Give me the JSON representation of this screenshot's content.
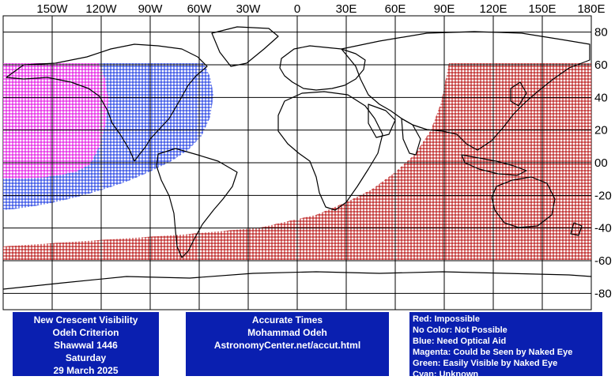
{
  "map": {
    "lon_labels": [
      "150W",
      "120W",
      "90W",
      "60W",
      "30W",
      "0",
      "30E",
      "60E",
      "90E",
      "120E",
      "150E",
      "180E"
    ],
    "lat_labels": [
      "80",
      "60",
      "40",
      "20",
      "00",
      "-20",
      "-40",
      "-60",
      "-80"
    ],
    "lon_values": [
      -150,
      -120,
      -90,
      -60,
      -30,
      0,
      30,
      60,
      90,
      120,
      150,
      180
    ],
    "lat_values": [
      80,
      60,
      40,
      20,
      0,
      -20,
      -40,
      -60,
      -80
    ],
    "colors": {
      "impossible": "#b30000",
      "optical_aid": "#1030e0",
      "naked_eye": "#e000e0",
      "coast": "#000000",
      "grid": "#000000"
    },
    "regions": [
      "impossible",
      "need-optical-aid",
      "naked-eye"
    ]
  },
  "panels": {
    "title_lines": [
      "New Crescent Visibility",
      "Odeh Criterion",
      "Shawwal 1446",
      "Saturday",
      "29 March 2025"
    ],
    "credit_lines": [
      "Accurate Times",
      "Mohammad Odeh",
      "AstronomyCenter.net/accut.html"
    ],
    "legend_lines": [
      "Red: Impossible",
      "No Color: Not Possible",
      "Blue: Need Optical Aid",
      "Magenta: Could be Seen by Naked Eye",
      "Green: Easily Visible by Naked Eye",
      "Cyan: Unknown"
    ],
    "background": "#0a1fb0"
  }
}
